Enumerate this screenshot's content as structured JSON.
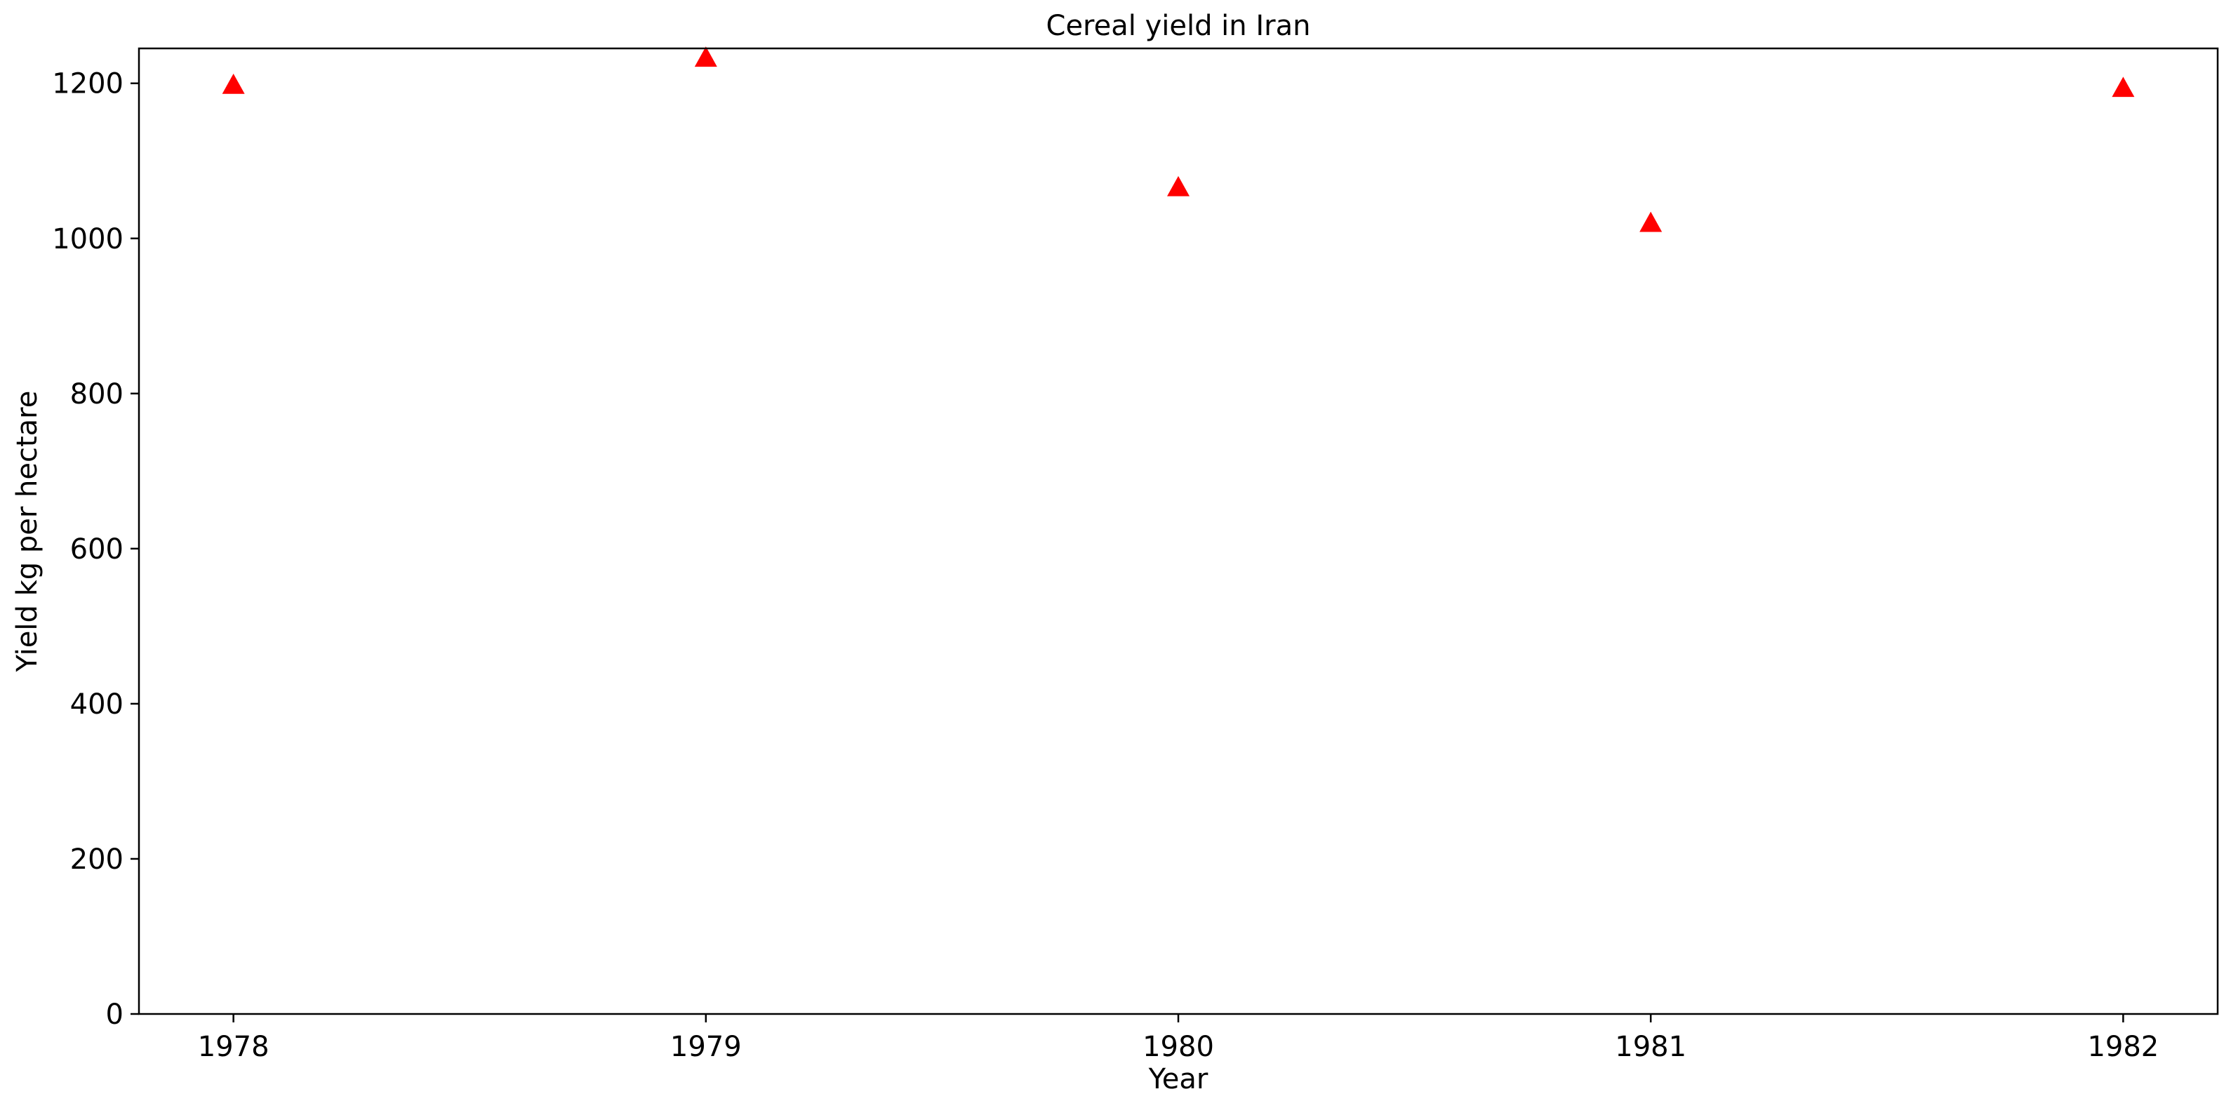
{
  "chart_data": {
    "type": "scatter",
    "title": "Cereal yield in Iran",
    "xlabel": "Year",
    "ylabel": "Yield kg per hectare",
    "x": [
      1978,
      1979,
      1980,
      1981,
      1982
    ],
    "y": [
      1198,
      1233,
      1066,
      1020,
      1194
    ],
    "xlim": [
      1977.8,
      1982.2
    ],
    "ylim": [
      0,
      1245
    ],
    "xticks": [
      "1978",
      "1979",
      "1980",
      "1981",
      "1982"
    ],
    "yticks": [
      "0",
      "200",
      "400",
      "600",
      "800",
      "1000",
      "1200"
    ],
    "marker": "triangle-up",
    "color": "#ff0000",
    "grid": false,
    "legend": "none"
  }
}
